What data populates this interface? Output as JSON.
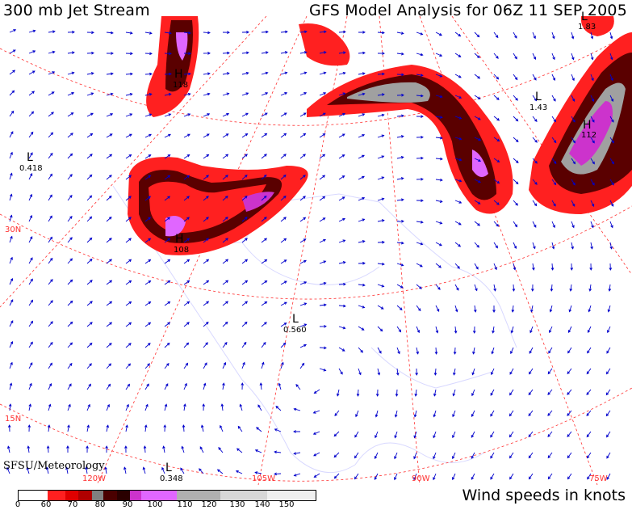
{
  "header": {
    "left_title": "300 mb Jet Stream",
    "right_title": "GFS Model Analysis for 06Z 11 SEP 2005"
  },
  "footer": {
    "credit": "SFSU/Meteorology",
    "units_label": "Wind speeds in knots"
  },
  "legend": {
    "ticks": [
      "0",
      "60",
      "70",
      "80",
      "90",
      "100",
      "110",
      "120",
      "130",
      "140",
      "150"
    ],
    "colors": [
      "#ffffff",
      "#ff2020",
      "#e00000",
      "#b00000",
      "#808080",
      "#4a0000",
      "#2a0000",
      "#cc33cc",
      "#e066ff",
      "#b0b0b0",
      "#d8d8d8",
      "#f0f0f0"
    ]
  },
  "map_labels": {
    "lat_30": "30N",
    "lat_15": "15N",
    "lon_120": "120W",
    "lon_105": "105W",
    "lon_90": "90W",
    "lon_75": "75W"
  },
  "pressure_centers": [
    {
      "letter": "L",
      "value": "0.418"
    },
    {
      "letter": "L",
      "value": "0.560"
    },
    {
      "letter": "L",
      "value": "0.348"
    },
    {
      "letter": "L",
      "value": "1.43"
    },
    {
      "letter": "H",
      "value": "112"
    },
    {
      "letter": "H",
      "value": "108"
    },
    {
      "letter": "H",
      "value": "118"
    },
    {
      "letter": "L",
      "value": "1.83"
    }
  ],
  "colors": {
    "grid": "#ff3030",
    "arrows": "#0000cc",
    "coast": "#d8d8ff"
  }
}
